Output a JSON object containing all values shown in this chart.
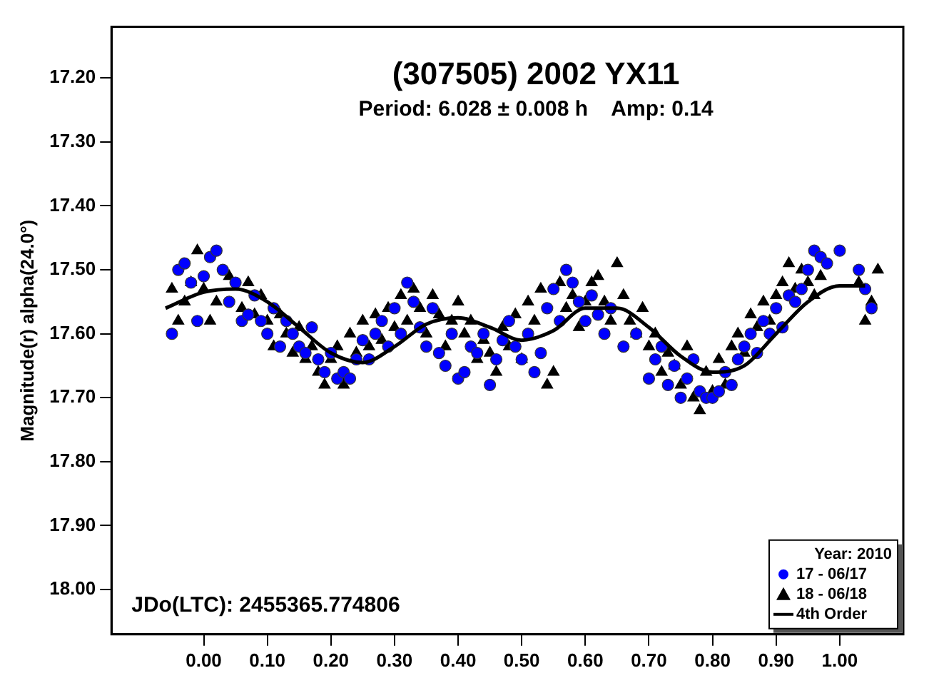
{
  "chart_data": {
    "type": "scatter",
    "title": "(307505) 2002 YX11",
    "subtitle": "Period: 6.028 ± 0.008 h    Amp: 0.14",
    "ylabel": "Magnitude(r) alpha(24.0°)",
    "legend_title": "Year: 2010",
    "annotations": [
      "JDo(LTC): 2455365.774806"
    ],
    "xlim": [
      -0.145,
      1.1
    ],
    "ylim": [
      18.07,
      17.12
    ],
    "xticks": [
      {
        "value": 0,
        "label": "0.00"
      },
      {
        "value": 0.1,
        "label": "0.10"
      },
      {
        "value": 0.2,
        "label": "0.20"
      },
      {
        "value": 0.3,
        "label": "0.30"
      },
      {
        "value": 0.4,
        "label": "0.40"
      },
      {
        "value": 0.5,
        "label": "0.50"
      },
      {
        "value": 0.6,
        "label": "0.60"
      },
      {
        "value": 0.7,
        "label": "0.70"
      },
      {
        "value": 0.8,
        "label": "0.80"
      },
      {
        "value": 0.9,
        "label": "0.90"
      },
      {
        "value": 1,
        "label": "1.00"
      }
    ],
    "yticks": [
      {
        "value": 17.2,
        "label": "17.20"
      },
      {
        "value": 17.3,
        "label": "17.30"
      },
      {
        "value": 17.4,
        "label": "17.40"
      },
      {
        "value": 17.5,
        "label": "17.50"
      },
      {
        "value": 17.6,
        "label": "17.60"
      },
      {
        "value": 17.7,
        "label": "17.70"
      },
      {
        "value": 17.8,
        "label": "17.80"
      },
      {
        "value": 17.9,
        "label": "17.90"
      },
      {
        "value": 18,
        "label": "18.00"
      }
    ],
    "grid": false,
    "legend": "bottom right",
    "series": [
      {
        "name": "17 - 06/17",
        "type": "scatter",
        "marker": "circle",
        "color": "#0000ff",
        "x": [
          -0.05,
          -0.04,
          -0.03,
          -0.02,
          -0.01,
          0,
          0.01,
          0.02,
          0.03,
          0.04,
          0.05,
          0.06,
          0.07,
          0.08,
          0.09,
          0.1,
          0.11,
          0.12,
          0.13,
          0.14,
          0.15,
          0.16,
          0.17,
          0.18,
          0.19,
          0.2,
          0.21,
          0.22,
          0.23,
          0.24,
          0.25,
          0.26,
          0.27,
          0.28,
          0.29,
          0.3,
          0.31,
          0.32,
          0.33,
          0.34,
          0.35,
          0.36,
          0.37,
          0.38,
          0.39,
          0.4,
          0.41,
          0.42,
          0.43,
          0.44,
          0.45,
          0.46,
          0.47,
          0.48,
          0.49,
          0.5,
          0.51,
          0.52,
          0.53,
          0.54,
          0.55,
          0.56,
          0.57,
          0.58,
          0.59,
          0.6,
          0.61,
          0.62,
          0.63,
          0.64,
          0.66,
          0.68,
          0.7,
          0.71,
          0.72,
          0.73,
          0.74,
          0.75,
          0.76,
          0.77,
          0.78,
          0.79,
          0.8,
          0.81,
          0.82,
          0.83,
          0.84,
          0.85,
          0.86,
          0.87,
          0.88,
          0.89,
          0.9,
          0.91,
          0.92,
          0.93,
          0.94,
          0.95,
          0.96,
          0.97,
          0.98,
          1,
          1.03,
          1.04,
          1.05
        ],
        "values": [
          17.6,
          17.5,
          17.49,
          17.52,
          17.58,
          17.51,
          17.48,
          17.47,
          17.5,
          17.55,
          17.52,
          17.58,
          17.57,
          17.54,
          17.58,
          17.6,
          17.56,
          17.62,
          17.58,
          17.6,
          17.62,
          17.63,
          17.59,
          17.64,
          17.66,
          17.63,
          17.67,
          17.66,
          17.67,
          17.64,
          17.61,
          17.64,
          17.6,
          17.58,
          17.62,
          17.56,
          17.6,
          17.52,
          17.55,
          17.59,
          17.62,
          17.56,
          17.63,
          17.65,
          17.6,
          17.67,
          17.66,
          17.62,
          17.63,
          17.6,
          17.68,
          17.64,
          17.61,
          17.58,
          17.62,
          17.64,
          17.6,
          17.66,
          17.63,
          17.56,
          17.53,
          17.58,
          17.5,
          17.52,
          17.55,
          17.58,
          17.54,
          17.57,
          17.6,
          17.56,
          17.62,
          17.6,
          17.67,
          17.64,
          17.62,
          17.68,
          17.65,
          17.7,
          17.67,
          17.64,
          17.69,
          17.7,
          17.7,
          17.69,
          17.66,
          17.68,
          17.64,
          17.62,
          17.6,
          17.63,
          17.58,
          17.6,
          17.56,
          17.59,
          17.54,
          17.55,
          17.53,
          17.5,
          17.47,
          17.48,
          17.49,
          17.47,
          17.5,
          17.53,
          17.56
        ]
      },
      {
        "name": "18 - 06/18",
        "type": "scatter",
        "marker": "triangle",
        "color": "#000000",
        "x": [
          -0.05,
          -0.04,
          -0.03,
          -0.02,
          -0.01,
          0,
          0.01,
          0.02,
          0.04,
          0.06,
          0.07,
          0.08,
          0.09,
          0.1,
          0.11,
          0.12,
          0.13,
          0.14,
          0.15,
          0.16,
          0.17,
          0.18,
          0.19,
          0.2,
          0.21,
          0.22,
          0.23,
          0.24,
          0.25,
          0.26,
          0.27,
          0.28,
          0.29,
          0.3,
          0.31,
          0.32,
          0.33,
          0.34,
          0.35,
          0.36,
          0.37,
          0.38,
          0.39,
          0.4,
          0.41,
          0.42,
          0.43,
          0.44,
          0.45,
          0.46,
          0.47,
          0.48,
          0.49,
          0.5,
          0.51,
          0.52,
          0.53,
          0.54,
          0.55,
          0.56,
          0.57,
          0.58,
          0.59,
          0.6,
          0.61,
          0.62,
          0.63,
          0.64,
          0.65,
          0.66,
          0.67,
          0.68,
          0.69,
          0.7,
          0.71,
          0.72,
          0.73,
          0.74,
          0.75,
          0.76,
          0.77,
          0.78,
          0.79,
          0.8,
          0.81,
          0.82,
          0.83,
          0.84,
          0.85,
          0.86,
          0.87,
          0.88,
          0.89,
          0.9,
          0.91,
          0.92,
          0.93,
          0.94,
          0.95,
          0.96,
          0.97,
          1.03,
          1.04,
          1.05,
          1.06
        ],
        "values": [
          17.53,
          17.58,
          17.55,
          17.52,
          17.47,
          17.53,
          17.58,
          17.55,
          17.51,
          17.56,
          17.52,
          17.57,
          17.54,
          17.58,
          17.62,
          17.57,
          17.6,
          17.63,
          17.59,
          17.64,
          17.62,
          17.66,
          17.68,
          17.64,
          17.62,
          17.68,
          17.6,
          17.63,
          17.58,
          17.62,
          17.57,
          17.61,
          17.56,
          17.59,
          17.54,
          17.58,
          17.53,
          17.56,
          17.6,
          17.54,
          17.57,
          17.62,
          17.58,
          17.55,
          17.6,
          17.58,
          17.64,
          17.61,
          17.63,
          17.66,
          17.59,
          17.62,
          17.57,
          17.64,
          17.55,
          17.58,
          17.53,
          17.68,
          17.66,
          17.52,
          17.56,
          17.54,
          17.59,
          17.55,
          17.52,
          17.51,
          17.55,
          17.58,
          17.49,
          17.54,
          17.58,
          17.6,
          17.56,
          17.62,
          17.6,
          17.66,
          17.63,
          17.65,
          17.68,
          17.62,
          17.7,
          17.72,
          17.66,
          17.69,
          17.64,
          17.68,
          17.62,
          17.6,
          17.63,
          17.57,
          17.59,
          17.55,
          17.58,
          17.54,
          17.52,
          17.49,
          17.53,
          17.5,
          17.52,
          17.54,
          17.51,
          17.52,
          17.58,
          17.55,
          17.5
        ]
      },
      {
        "name": "4th Order",
        "type": "line",
        "marker": "none",
        "line_style": "solid",
        "color": "#000000",
        "x": [
          -0.06,
          0,
          0.05,
          0.1,
          0.15,
          0.2,
          0.25,
          0.3,
          0.35,
          0.4,
          0.45,
          0.5,
          0.55,
          0.6,
          0.65,
          0.7,
          0.75,
          0.8,
          0.85,
          0.9,
          0.95,
          1,
          1.04
        ],
        "values": [
          17.56,
          17.535,
          17.53,
          17.55,
          17.59,
          17.63,
          17.645,
          17.62,
          17.585,
          17.575,
          17.59,
          17.61,
          17.595,
          17.56,
          17.56,
          17.59,
          17.635,
          17.66,
          17.65,
          17.6,
          17.55,
          17.525,
          17.525
        ]
      }
    ]
  }
}
